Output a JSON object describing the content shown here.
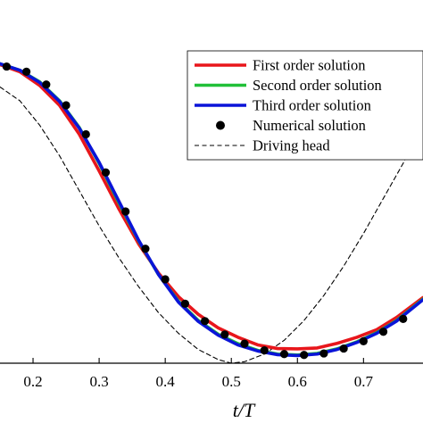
{
  "chart_data": {
    "type": "line",
    "xlabel": "t/T",
    "x_ticks": [
      "0.2",
      "0.3",
      "0.4",
      "0.5",
      "0.6",
      "0.7"
    ],
    "xlim": [
      0.15,
      0.79
    ],
    "ylim": [
      0.0,
      1.0
    ],
    "grid": false,
    "legend_position": "top-right",
    "series": [
      {
        "name": "First order solution",
        "style": "solid",
        "color": "#e8161b",
        "x": [
          0.15,
          0.18,
          0.21,
          0.24,
          0.27,
          0.3,
          0.33,
          0.36,
          0.39,
          0.42,
          0.45,
          0.48,
          0.51,
          0.54,
          0.57,
          0.6,
          0.63,
          0.66,
          0.69,
          0.72,
          0.75,
          0.79
        ],
        "y": [
          0.978,
          0.955,
          0.91,
          0.845,
          0.75,
          0.63,
          0.505,
          0.39,
          0.295,
          0.218,
          0.16,
          0.116,
          0.085,
          0.06,
          0.048,
          0.047,
          0.05,
          0.065,
          0.085,
          0.11,
          0.15,
          0.215
        ]
      },
      {
        "name": "Second order solution",
        "style": "solid",
        "color": "#21c038",
        "x": [
          0.15,
          0.18,
          0.21,
          0.24,
          0.27,
          0.3,
          0.33,
          0.36,
          0.39,
          0.42,
          0.45,
          0.48,
          0.51,
          0.54,
          0.57,
          0.6,
          0.63,
          0.66,
          0.69,
          0.72,
          0.75,
          0.79
        ],
        "y": [
          0.981,
          0.96,
          0.922,
          0.86,
          0.772,
          0.655,
          0.525,
          0.4,
          0.29,
          0.203,
          0.14,
          0.095,
          0.064,
          0.042,
          0.03,
          0.027,
          0.032,
          0.047,
          0.07,
          0.1,
          0.14,
          0.21
        ]
      },
      {
        "name": "Third order solution",
        "style": "solid",
        "color": "#0a14d8",
        "x": [
          0.15,
          0.18,
          0.21,
          0.24,
          0.27,
          0.3,
          0.33,
          0.36,
          0.39,
          0.42,
          0.45,
          0.48,
          0.51,
          0.54,
          0.57,
          0.6,
          0.63,
          0.66,
          0.69,
          0.72,
          0.75,
          0.79
        ],
        "y": [
          0.981,
          0.96,
          0.92,
          0.858,
          0.77,
          0.658,
          0.53,
          0.402,
          0.29,
          0.2,
          0.137,
          0.092,
          0.06,
          0.04,
          0.028,
          0.025,
          0.03,
          0.045,
          0.068,
          0.098,
          0.138,
          0.208
        ]
      },
      {
        "name": "Numerical solution",
        "style": "markers",
        "color": "#000000",
        "x": [
          0.16,
          0.19,
          0.22,
          0.25,
          0.28,
          0.31,
          0.34,
          0.37,
          0.4,
          0.43,
          0.46,
          0.49,
          0.52,
          0.55,
          0.58,
          0.61,
          0.64,
          0.67,
          0.7,
          0.73,
          0.76
        ],
        "y": [
          0.972,
          0.955,
          0.913,
          0.845,
          0.75,
          0.625,
          0.497,
          0.375,
          0.275,
          0.195,
          0.138,
          0.094,
          0.064,
          0.042,
          0.03,
          0.027,
          0.032,
          0.048,
          0.072,
          0.103,
          0.145
        ]
      },
      {
        "name": "Driving head",
        "style": "dashed",
        "color": "#000000",
        "x": [
          0.15,
          0.18,
          0.21,
          0.24,
          0.27,
          0.3,
          0.33,
          0.36,
          0.39,
          0.42,
          0.45,
          0.48,
          0.5,
          0.52,
          0.55,
          0.58,
          0.61,
          0.64,
          0.67,
          0.7,
          0.73,
          0.76,
          0.79
        ],
        "y": [
          0.905,
          0.86,
          0.78,
          0.68,
          0.565,
          0.45,
          0.345,
          0.25,
          0.165,
          0.098,
          0.045,
          0.012,
          0.0,
          0.005,
          0.03,
          0.075,
          0.14,
          0.222,
          0.318,
          0.425,
          0.54,
          0.655,
          0.79
        ]
      }
    ]
  }
}
